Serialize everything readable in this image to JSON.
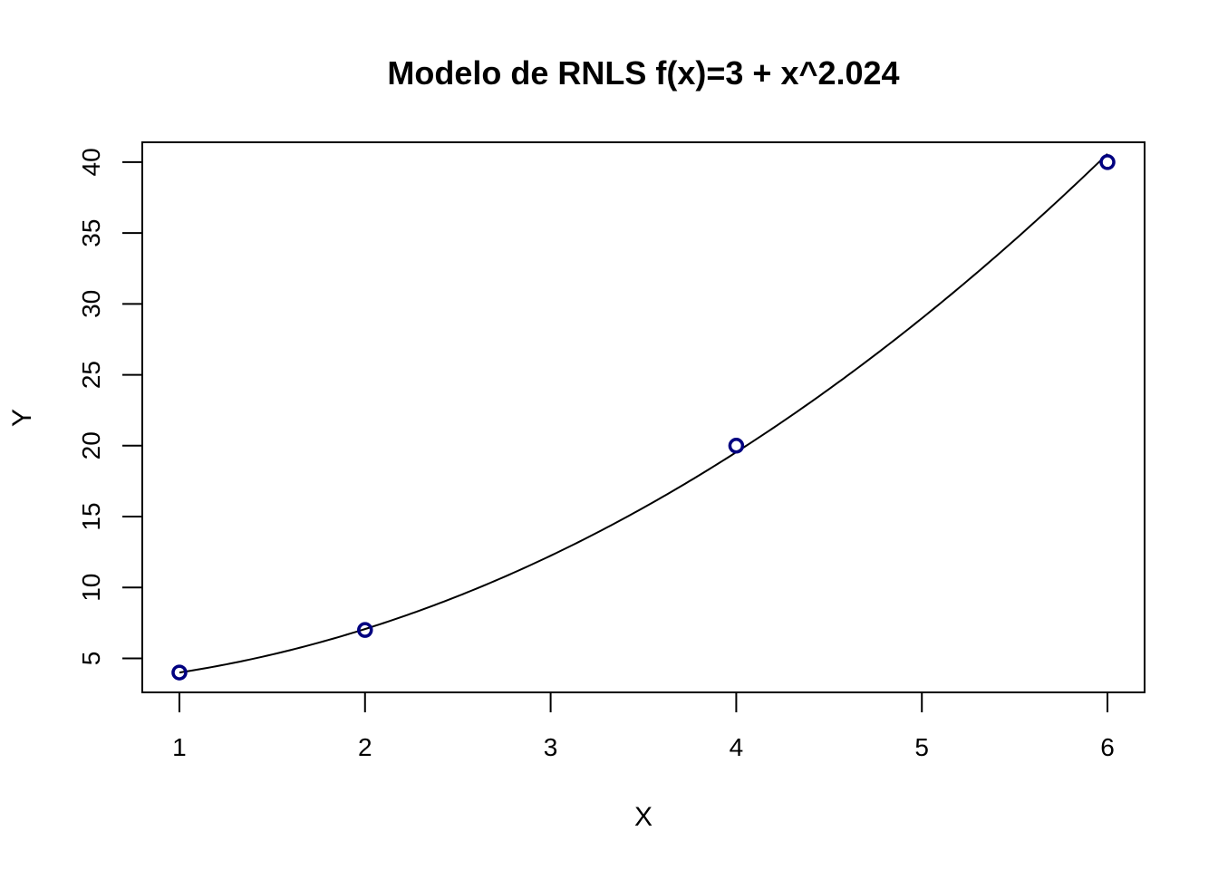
{
  "chart_data": {
    "type": "scatter",
    "title": "Modelo de RNLS f(x)=3 + x^2.024",
    "xlabel": "X",
    "ylabel": "Y",
    "xlim": [
      0.8,
      6.2
    ],
    "ylim": [
      2.6,
      41.4
    ],
    "x_ticks": [
      1,
      2,
      3,
      4,
      5,
      6
    ],
    "y_ticks": [
      5,
      10,
      15,
      20,
      25,
      30,
      35,
      40
    ],
    "grid": false,
    "legend": "none",
    "points": {
      "x": [
        1,
        2,
        4,
        6
      ],
      "y": [
        4,
        7,
        20,
        40
      ],
      "color": "#000080"
    },
    "fit_curve": {
      "intercept": 3,
      "exponent": 2.024,
      "x_range": [
        1,
        6
      ],
      "color": "#000000"
    }
  }
}
